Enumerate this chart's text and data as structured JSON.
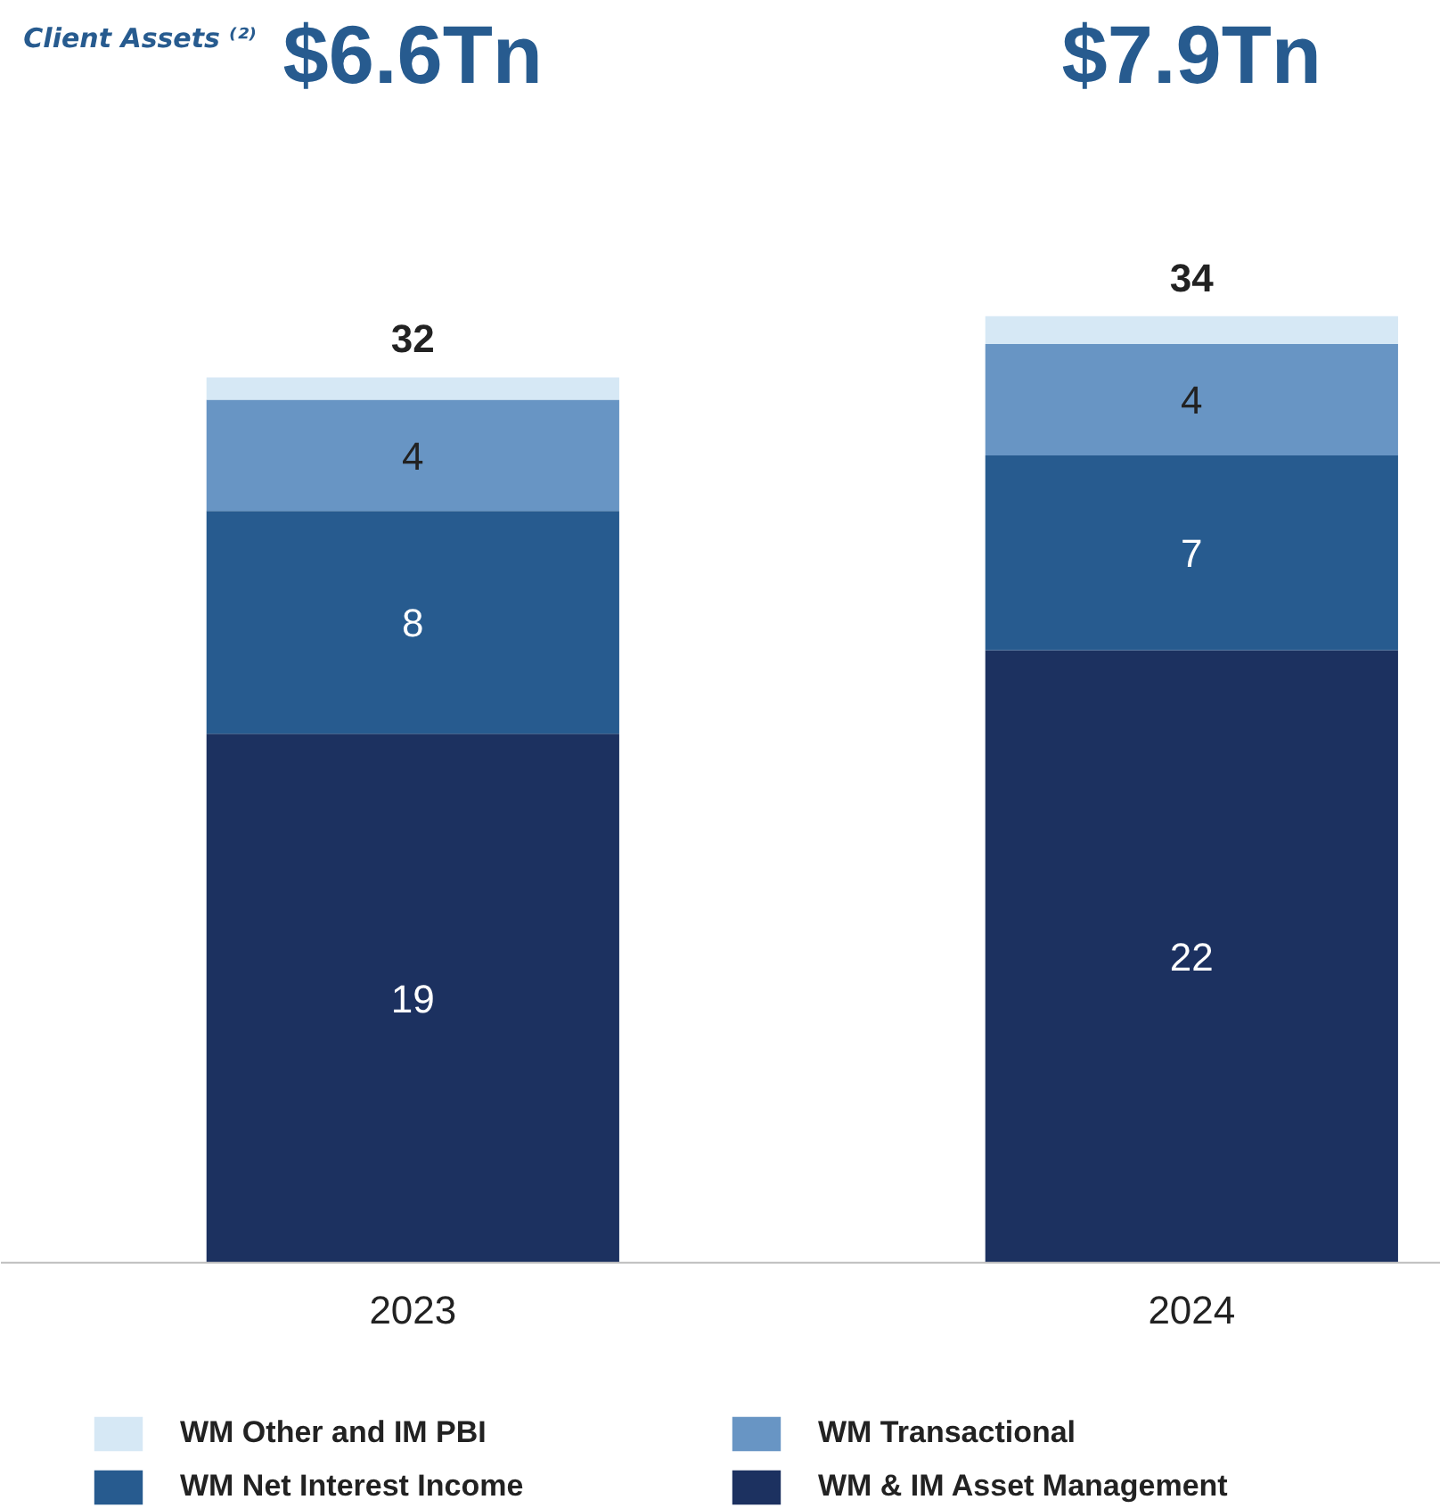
{
  "chart_data": {
    "type": "bar",
    "stacked": true,
    "categories": [
      "2023",
      "2024"
    ],
    "series": [
      {
        "name": "WM & IM Asset Management",
        "color": "#1c3160",
        "values": [
          19,
          22
        ],
        "value_labels": [
          "19",
          "22"
        ]
      },
      {
        "name": "WM Net Interest Income",
        "color": "#275b8f",
        "values": [
          8,
          7
        ],
        "value_labels": [
          "8",
          "7"
        ]
      },
      {
        "name": "WM Transactional",
        "color": "#6895c4",
        "values": [
          4,
          4
        ],
        "value_labels": [
          "4",
          "4"
        ]
      },
      {
        "name": "WM Other and IM PBI",
        "color": "#d6e8f5",
        "values": [
          0.8,
          1
        ],
        "value_labels": [
          null,
          null
        ]
      }
    ],
    "totals": [
      "32",
      "34"
    ],
    "annotations": [
      "Client Assets ⁽²⁾",
      "$6.6Tn",
      "$7.9Tn"
    ],
    "legend": "bottom",
    "grid": false
  }
}
